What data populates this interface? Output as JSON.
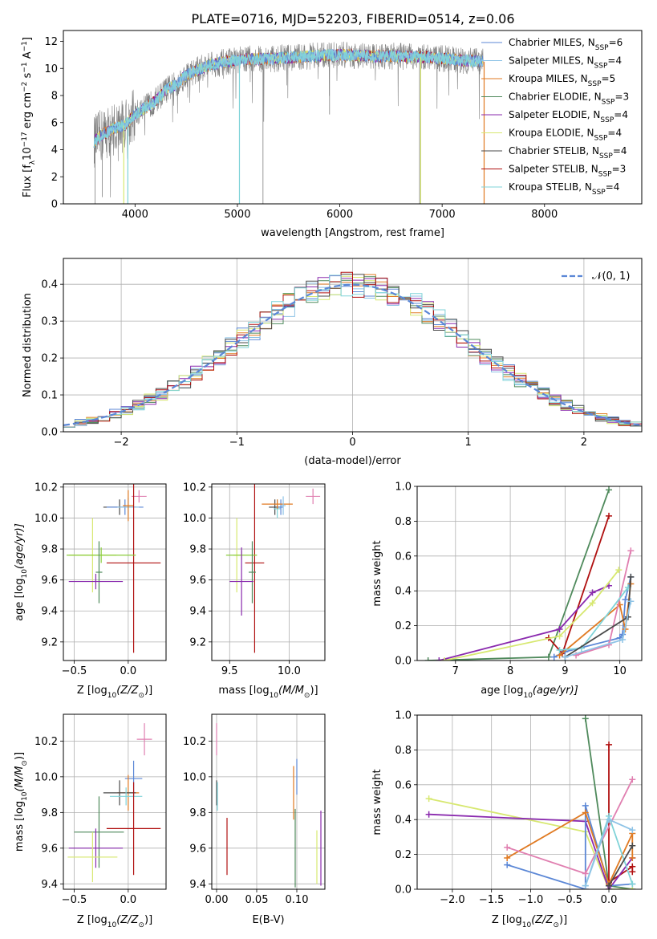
{
  "title": "PLATE=0716, MJD=52203, FIBERID=0514, z=0.06",
  "colors": {
    "Chabrier MILES": "#5b87d6",
    "Salpeter MILES": "#8ec3e6",
    "Kroupa MILES": "#e07a22",
    "Chabrier ELODIE": "#4f8a5c",
    "Salpeter ELODIE": "#8a2aae",
    "Kroupa ELODIE": "#d7e870",
    "Chabrier STELIB": "#4a4a4a",
    "Salpeter STELIB": "#b01010",
    "Kroupa STELIB": "#7fd3d8",
    "pink": "#e07fb0",
    "ygreen": "#8acd3c",
    "data": "#808080"
  },
  "chart_data": [
    {
      "id": "spectrum",
      "type": "line",
      "xlabel": "wavelength [Angstrom, rest frame]",
      "ylabel": "Flux [f",
      "ylabel_sub": "λ",
      "ylabel_rest": "10",
      "ylabel_exp1": "−17",
      "ylabel_mid": " erg cm",
      "ylabel_exp2": "−2",
      "ylabel_mid2": " s",
      "ylabel_exp3": "−1",
      "ylabel_end": " A",
      "ylabel_exp4": "−1",
      "ylabel_close": "]",
      "xlim": [
        3300,
        8950
      ],
      "ylim": [
        0,
        12.8
      ],
      "xticks": [
        4000,
        5000,
        6000,
        7000,
        8000
      ],
      "xtick_labels": [
        "4000",
        "5000",
        "6000",
        "7000",
        "8000"
      ],
      "yticks": [
        0,
        2,
        4,
        6,
        8,
        10,
        12
      ],
      "ytick_labels": [
        "0",
        "2",
        "4",
        "6",
        "8",
        "10",
        "12"
      ],
      "continuum_x": [
        3600,
        3700,
        3800,
        3900,
        4000,
        4100,
        4200,
        4300,
        4400,
        4500,
        4700,
        4900,
        5100,
        5300,
        5500,
        5700,
        6000,
        6300,
        6600,
        6900,
        7200,
        7400
      ],
      "continuum_y": [
        4.6,
        5.2,
        5.6,
        5.8,
        6.6,
        7.1,
        7.6,
        8.4,
        8.8,
        9.5,
        10.2,
        10.5,
        10.7,
        10.7,
        10.8,
        10.9,
        11.0,
        10.9,
        10.9,
        10.8,
        10.6,
        10.5
      ],
      "series": [
        {
          "name": "Chabrier MILES",
          "label_sub": "SSP",
          "n": "6"
        },
        {
          "name": "Salpeter MILES",
          "label_sub": "SSP",
          "n": "4"
        },
        {
          "name": "Kroupa MILES",
          "label_sub": "SSP",
          "n": "5"
        },
        {
          "name": "Chabrier ELODIE",
          "label_sub": "SSP",
          "n": "3"
        },
        {
          "name": "Salpeter ELODIE",
          "label_sub": "SSP",
          "n": "4"
        },
        {
          "name": "Kroupa ELODIE",
          "label_sub": "SSP",
          "n": "4"
        },
        {
          "name": "Chabrier STELIB",
          "label_sub": "SSP",
          "n": "4"
        },
        {
          "name": "Salpeter STELIB",
          "label_sub": "SSP",
          "n": "3"
        },
        {
          "name": "Kroupa STELIB",
          "label_sub": "SSP",
          "n": "4"
        }
      ],
      "legend_prefix": "N",
      "legend_placement": "right"
    },
    {
      "id": "residuals",
      "type": "histogram",
      "xlabel": "(data-model)/error",
      "ylabel": "Normed distribution",
      "xlim": [
        -2.5,
        2.5
      ],
      "ylim": [
        0,
        0.47
      ],
      "xticks": [
        -2,
        -1,
        0,
        1,
        2
      ],
      "xtick_labels": [
        "−2",
        "−1",
        "0",
        "1",
        "2"
      ],
      "yticks": [
        0.0,
        0.1,
        0.2,
        0.3,
        0.4
      ],
      "ytick_labels": [
        "0.0",
        "0.1",
        "0.2",
        "0.3",
        "0.4"
      ],
      "bin_width": 0.1,
      "gaussian_label": "𝒩(0, 1)",
      "legend_placement": "top-right"
    },
    {
      "id": "age_vs_Z",
      "type": "scatter",
      "xlabel": "Z [log",
      "xlabel_sub": "10",
      "xlabel_rest": "(Z/Z",
      "xlabel_sun": "⊙",
      "xlabel_close": ")]",
      "ylabel": "age  [log",
      "ylabel_sub": "10",
      "ylabel_rest": "(age/yr)]",
      "xlim": [
        -0.6,
        0.35
      ],
      "ylim": [
        9.08,
        10.22
      ],
      "xticks": [
        -0.5,
        0.0
      ],
      "xtick_labels": [
        "−0.5",
        "0.0"
      ],
      "yticks": [
        9.2,
        9.4,
        9.6,
        9.8,
        10.0,
        10.2
      ],
      "ytick_labels": [
        "9.2",
        "9.4",
        "9.6",
        "9.8",
        "10.0",
        "10.2"
      ],
      "points": [
        {
          "c": "Chabrier STELIB",
          "x": -0.08,
          "y": 10.07,
          "xe": 0.15,
          "ye": 0.05
        },
        {
          "c": "Chabrier MILES",
          "x": -0.03,
          "y": 10.07,
          "xe": 0.17,
          "ye": 0.05
        },
        {
          "c": "Salpeter MILES",
          "x": 0.0,
          "y": 10.07,
          "xe": 0.1,
          "ye": 0.06
        },
        {
          "c": "Kroupa MILES",
          "x": 0.0,
          "y": 10.08,
          "xe": 0.05,
          "ye": 0.1
        },
        {
          "c": "pink",
          "x": 0.1,
          "y": 10.14,
          "xe": 0.07,
          "ye": 0.04
        },
        {
          "c": "Salpeter STELIB",
          "x": 0.05,
          "y": 9.71,
          "xe": 0.25,
          "ye": 0.58
        },
        {
          "c": "Kroupa ELODIE",
          "x": -0.33,
          "y": 9.76,
          "xe": 0.22,
          "ye": 0.24
        },
        {
          "c": "ygreen",
          "x": -0.25,
          "y": 9.76,
          "xe": 0.32,
          "ye": 0.05
        },
        {
          "c": "Chabrier ELODIE",
          "x": -0.27,
          "y": 9.65,
          "xe": 0.03,
          "ye": 0.2
        },
        {
          "c": "Salpeter ELODIE",
          "x": -0.3,
          "y": 9.59,
          "xe": 0.25,
          "ye": 0.05
        }
      ]
    },
    {
      "id": "age_vs_mass",
      "type": "scatter",
      "xlabel": "mass [log",
      "xlabel_sub": "10",
      "xlabel_rest": "(M/M",
      "xlabel_sun": "⊙",
      "xlabel_close": ")]",
      "xlim": [
        9.35,
        10.3
      ],
      "ylim": [
        9.08,
        10.22
      ],
      "xticks": [
        9.5,
        10.0
      ],
      "xtick_labels": [
        "9.5",
        "10.0"
      ],
      "yticks": [
        9.2,
        9.4,
        9.6,
        9.8,
        10.0,
        10.2
      ],
      "ytick_labels": [
        "9.2",
        "9.4",
        "9.6",
        "9.8",
        "10.0",
        "10.2"
      ],
      "points": [
        {
          "c": "Chabrier STELIB",
          "x": 9.88,
          "y": 10.07,
          "xe": 0.05,
          "ye": 0.05
        },
        {
          "c": "Kroupa STELIB",
          "x": 9.9,
          "y": 10.06,
          "xe": 0.03,
          "ye": 0.06
        },
        {
          "c": "Chabrier MILES",
          "x": 9.93,
          "y": 10.07,
          "xe": 0.02,
          "ye": 0.05
        },
        {
          "c": "Kroupa MILES",
          "x": 9.9,
          "y": 10.09,
          "xe": 0.13,
          "ye": 0.03
        },
        {
          "c": "Salpeter MILES",
          "x": 9.95,
          "y": 10.08,
          "xe": 0.02,
          "ye": 0.06
        },
        {
          "c": "pink",
          "x": 10.2,
          "y": 10.14,
          "xe": 0.06,
          "ye": 0.05
        },
        {
          "c": "Salpeter STELIB",
          "x": 9.71,
          "y": 9.71,
          "xe": 0.08,
          "ye": 0.58
        },
        {
          "c": "Kroupa ELODIE",
          "x": 9.56,
          "y": 9.76,
          "xe": 0.03,
          "ye": 0.24
        },
        {
          "c": "ygreen",
          "x": 9.6,
          "y": 9.76,
          "xe": 0.13,
          "ye": 0.03
        },
        {
          "c": "Chabrier ELODIE",
          "x": 9.69,
          "y": 9.65,
          "xe": 0.03,
          "ye": 0.2
        },
        {
          "c": "Salpeter ELODIE",
          "x": 9.6,
          "y": 9.59,
          "xe": 0.1,
          "ye": 0.22
        }
      ]
    },
    {
      "id": "weight_vs_age",
      "type": "line",
      "xlabel": "age  [log",
      "xlabel_sub": "10",
      "xlabel_rest": "(age/yr)]",
      "ylabel": "mass weight",
      "xlim": [
        6.3,
        10.4
      ],
      "ylim": [
        0,
        1.0
      ],
      "xticks": [
        7,
        8,
        9,
        10
      ],
      "xtick_labels": [
        "7",
        "8",
        "9",
        "10"
      ],
      "yticks": [
        0.0,
        0.2,
        0.4,
        0.6,
        0.8,
        1.0
      ],
      "ytick_labels": [
        "0.0",
        "0.2",
        "0.4",
        "0.6",
        "0.8",
        "1.0"
      ],
      "series": [
        {
          "c": "Chabrier ELODIE",
          "x": [
            6.5,
            8.7,
            9.8
          ],
          "y": [
            0.0,
            0.02,
            0.98
          ]
        },
        {
          "c": "Salpeter STELIB",
          "x": [
            8.7,
            8.95,
            9.8
          ],
          "y": [
            0.13,
            0.04,
            0.83
          ]
        },
        {
          "c": "Salpeter ELODIE",
          "x": [
            6.7,
            8.9,
            9.5,
            9.8
          ],
          "y": [
            0.0,
            0.18,
            0.39,
            0.43
          ]
        },
        {
          "c": "Kroupa ELODIE",
          "x": [
            6.8,
            8.9,
            9.5,
            9.98
          ],
          "y": [
            0.0,
            0.14,
            0.33,
            0.52
          ]
        },
        {
          "c": "Chabrier MILES",
          "x": [
            8.8,
            9.0,
            10.0,
            10.05,
            10.1,
            10.2
          ],
          "y": [
            0.02,
            0.05,
            0.13,
            0.15,
            0.35,
            0.48
          ]
        },
        {
          "c": "Kroupa MILES",
          "x": [
            8.9,
            10.0,
            10.1,
            10.2
          ],
          "y": [
            0.03,
            0.32,
            0.18,
            0.44
          ]
        },
        {
          "c": "pink",
          "x": [
            9.2,
            9.8,
            10.2
          ],
          "y": [
            0.03,
            0.09,
            0.63
          ]
        },
        {
          "c": "Kroupa STELIB",
          "x": [
            8.9,
            9.3,
            10.15
          ],
          "y": [
            0.06,
            0.07,
            0.42
          ]
        },
        {
          "c": "Chabrier STELIB",
          "x": [
            9.0,
            10.15,
            10.2
          ],
          "y": [
            0.02,
            0.25,
            0.48
          ]
        },
        {
          "c": "Salpeter MILES",
          "x": [
            9.0,
            10.05,
            10.2
          ],
          "y": [
            0.02,
            0.12,
            0.34
          ]
        }
      ]
    },
    {
      "id": "mass_vs_Z",
      "type": "scatter",
      "xlabel": "Z [log",
      "xlabel_sub": "10",
      "xlabel_rest": "(Z/Z",
      "xlabel_sun": "⊙",
      "xlabel_close": ")]",
      "ylabel": "mass [log",
      "ylabel_sub": "10",
      "ylabel_rest": "(M/M",
      "ylabel_sun": "⊙",
      "ylabel_close": ")]",
      "xlim": [
        -0.6,
        0.35
      ],
      "ylim": [
        9.37,
        10.35
      ],
      "xticks": [
        -0.5,
        0.0
      ],
      "xtick_labels": [
        "−0.5",
        "0.0"
      ],
      "yticks": [
        9.4,
        9.6,
        9.8,
        10.0,
        10.2
      ],
      "ytick_labels": [
        "9.4",
        "9.6",
        "9.8",
        "10.0",
        "10.2"
      ],
      "points": [
        {
          "c": "pink",
          "x": 0.15,
          "y": 10.21,
          "xe": 0.07,
          "ye": 0.09
        },
        {
          "c": "Chabrier MILES",
          "x": 0.05,
          "y": 9.99,
          "xe": 0.08,
          "ye": 0.1
        },
        {
          "c": "Kroupa MILES",
          "x": 0.0,
          "y": 9.91,
          "xe": 0.1,
          "ye": 0.1
        },
        {
          "c": "Chabrier STELIB",
          "x": -0.08,
          "y": 9.91,
          "xe": 0.15,
          "ye": 0.07
        },
        {
          "c": "Kroupa STELIB",
          "x": -0.02,
          "y": 9.89,
          "xe": 0.15,
          "ye": 0.05
        },
        {
          "c": "Salpeter STELIB",
          "x": 0.05,
          "y": 9.71,
          "xe": 0.25,
          "ye": 0.26
        },
        {
          "c": "Chabrier ELODIE",
          "x": -0.27,
          "y": 9.69,
          "xe": 0.23,
          "ye": 0.2
        },
        {
          "c": "Salpeter ELODIE",
          "x": -0.3,
          "y": 9.6,
          "xe": 0.25,
          "ye": 0.11
        },
        {
          "c": "Kroupa ELODIE",
          "x": -0.33,
          "y": 9.55,
          "xe": 0.23,
          "ye": 0.14
        }
      ]
    },
    {
      "id": "mass_vs_ebv",
      "type": "scatter",
      "xlabel": "E(B-V)",
      "xlim": [
        -0.006,
        0.135
      ],
      "ylim": [
        9.37,
        10.35
      ],
      "xticks": [
        0.0,
        0.05,
        0.1
      ],
      "xtick_labels": [
        "0.00",
        "0.05",
        "0.10"
      ],
      "yticks": [
        9.4,
        9.6,
        9.8,
        10.0,
        10.2
      ],
      "ytick_labels": [
        "9.4",
        "9.6",
        "9.8",
        "10.0",
        "10.2"
      ],
      "points": [
        {
          "c": "pink",
          "x": 0.0,
          "y": 10.21,
          "xe": 0,
          "ye": 0.09
        },
        {
          "c": "Chabrier STELIB",
          "x": 0.0,
          "y": 9.91,
          "xe": 0,
          "ye": 0.07
        },
        {
          "c": "Kroupa STELIB",
          "x": 0.001,
          "y": 9.89,
          "xe": 0,
          "ye": 0.08
        },
        {
          "c": "Salpeter STELIB",
          "x": 0.013,
          "y": 9.61,
          "xe": 0,
          "ye": 0.16
        },
        {
          "c": "Kroupa MILES",
          "x": 0.096,
          "y": 9.91,
          "xe": 0,
          "ye": 0.15
        },
        {
          "c": "Chabrier MILES",
          "x": 0.1,
          "y": 10.0,
          "xe": 0,
          "ye": 0.1
        },
        {
          "c": "Chabrier ELODIE",
          "x": 0.098,
          "y": 9.6,
          "xe": 0,
          "ye": 0.22
        },
        {
          "c": "Kroupa ELODIE",
          "x": 0.125,
          "y": 9.55,
          "xe": 0,
          "ye": 0.15
        },
        {
          "c": "Salpeter ELODIE",
          "x": 0.13,
          "y": 9.6,
          "xe": 0,
          "ye": 0.21
        }
      ]
    },
    {
      "id": "weight_vs_Z",
      "type": "line",
      "xlabel": "Z [log",
      "xlabel_sub": "10",
      "xlabel_rest": "(Z/Z",
      "xlabel_sun": "⊙",
      "xlabel_close": ")]",
      "ylabel": "mass weight",
      "xlim": [
        -2.45,
        0.42
      ],
      "ylim": [
        0,
        1.0
      ],
      "xticks": [
        -2.0,
        -1.5,
        -1.0,
        -0.5,
        0.0
      ],
      "xtick_labels": [
        "−2.0",
        "−1.5",
        "−1.0",
        "−0.5",
        "0.0"
      ],
      "yticks": [
        0.0,
        0.2,
        0.4,
        0.6,
        0.8,
        1.0
      ],
      "ytick_labels": [
        "0.0",
        "0.2",
        "0.4",
        "0.6",
        "0.8",
        "1.0"
      ],
      "series": [
        {
          "c": "Chabrier ELODIE",
          "x": [
            -0.3,
            0.0,
            0.3
          ],
          "y": [
            0.98,
            0.02,
            0.0
          ]
        },
        {
          "c": "Salpeter STELIB",
          "x": [
            0.0,
            0.0,
            0.3,
            0.3
          ],
          "y": [
            0.83,
            0.04,
            0.13,
            0.1
          ]
        },
        {
          "c": "Kroupa ELODIE",
          "x": [
            -2.3,
            -0.3,
            0.0,
            0.3
          ],
          "y": [
            0.52,
            0.33,
            0.0,
            0.0
          ]
        },
        {
          "c": "Salpeter ELODIE",
          "x": [
            -2.3,
            -0.3,
            0.0,
            0.3
          ],
          "y": [
            0.43,
            0.39,
            0.0,
            0.18
          ]
        },
        {
          "c": "Chabrier MILES",
          "x": [
            -1.3,
            -0.3,
            -0.3,
            0.0,
            0.3
          ],
          "y": [
            0.14,
            0.0,
            0.48,
            0.02,
            0.03
          ]
        },
        {
          "c": "Kroupa MILES",
          "x": [
            -1.3,
            -0.3,
            0.0,
            0.3,
            0.3
          ],
          "y": [
            0.18,
            0.44,
            0.03,
            0.32,
            0.18
          ]
        },
        {
          "c": "pink",
          "x": [
            -1.3,
            -0.3,
            0.3
          ],
          "y": [
            0.24,
            0.09,
            0.63
          ]
        },
        {
          "c": "Kroupa STELIB",
          "x": [
            -0.3,
            0.0,
            0.3
          ],
          "y": [
            0.02,
            0.42,
            0.03
          ]
        },
        {
          "c": "Chabrier STELIB",
          "x": [
            0.0,
            0.3
          ],
          "y": [
            0.02,
            0.25
          ]
        },
        {
          "c": "Salpeter MILES",
          "x": [
            -0.3,
            0.0,
            0.3
          ],
          "y": [
            0.02,
            0.4,
            0.34
          ]
        }
      ]
    }
  ]
}
